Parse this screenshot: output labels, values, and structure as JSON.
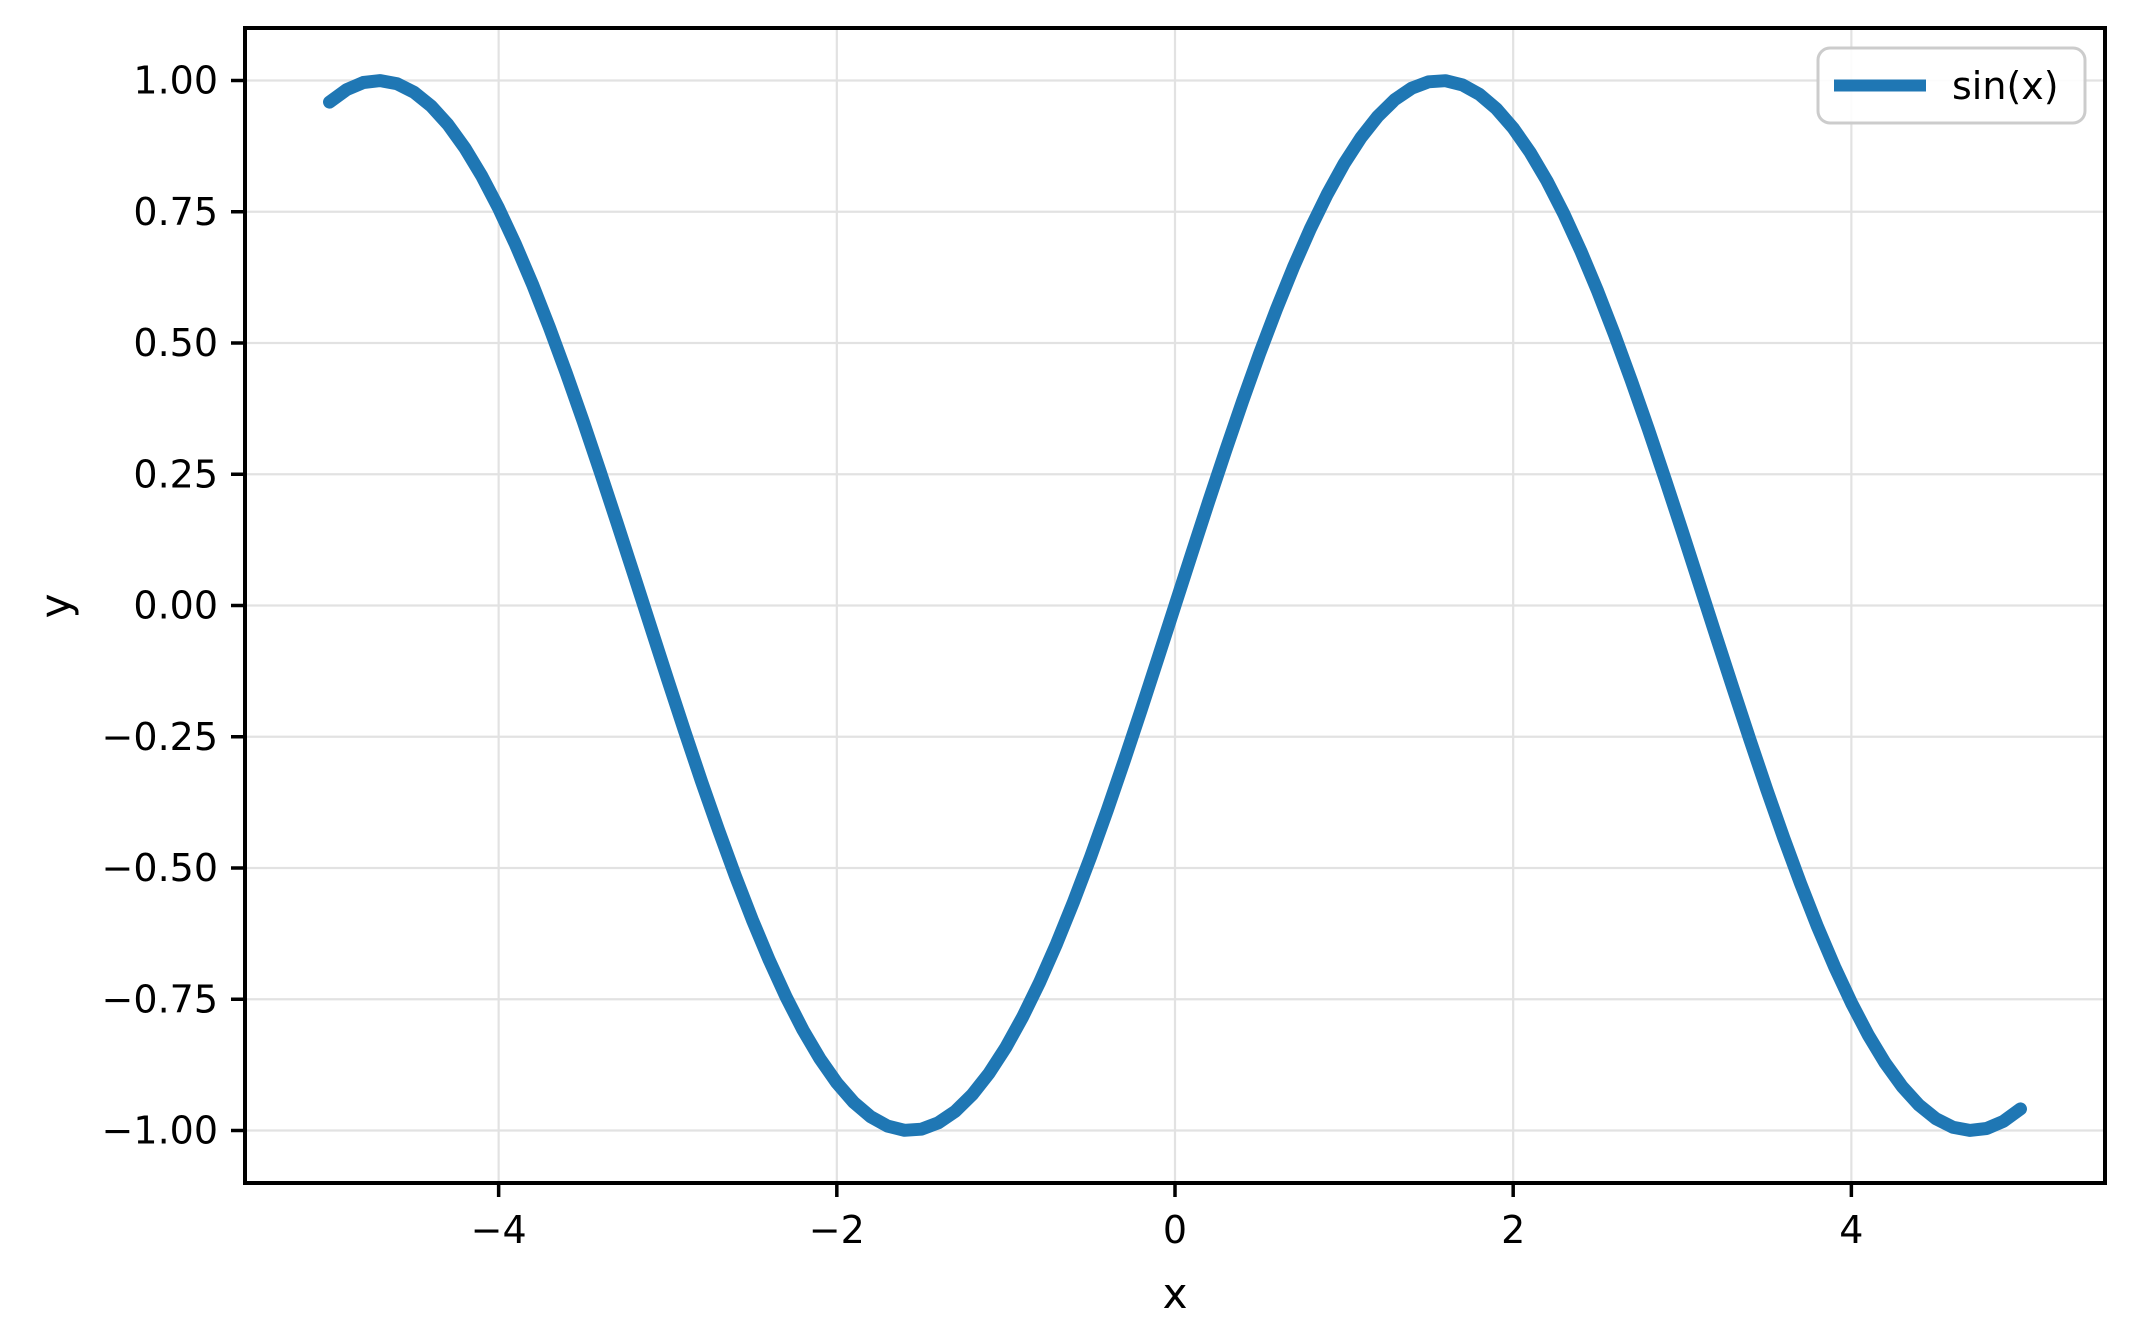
{
  "figure": {
    "background": "#ffffff"
  },
  "chart_data": {
    "type": "line",
    "title": "",
    "xlabel": "x",
    "ylabel": "y",
    "xlim": [
      -5.5,
      5.5
    ],
    "ylim": [
      -1.1,
      1.1
    ],
    "grid": true,
    "grid_color": "#e2e2e2",
    "axes_edge_color": "#000000",
    "x_ticks": [
      -4,
      -2,
      0,
      2,
      4
    ],
    "x_tick_labels": [
      "−4",
      "−2",
      "0",
      "2",
      "4"
    ],
    "y_ticks": [
      1.0,
      0.75,
      0.5,
      0.25,
      0.0,
      -0.25,
      -0.5,
      -0.75,
      -1.0
    ],
    "y_tick_labels": [
      "1.00",
      "0.75",
      "0.50",
      "0.25",
      "0.00",
      "−0.25",
      "−0.50",
      "−0.75",
      "−1.00"
    ],
    "legend": {
      "position": "upper right",
      "entries": [
        {
          "label": "sin(x)",
          "color": "#1f77b4"
        }
      ]
    },
    "series": [
      {
        "name": "sin(x)",
        "color": "#1f77b4",
        "x": [
          -5,
          -4.9,
          -4.8,
          -4.7,
          -4.6,
          -4.5,
          -4.4,
          -4.3,
          -4.2,
          -4.1,
          -4,
          -3.9,
          -3.8,
          -3.7,
          -3.6,
          -3.5,
          -3.4,
          -3.3,
          -3.2,
          -3.1,
          -3,
          -2.9,
          -2.8,
          -2.7,
          -2.6,
          -2.5,
          -2.4,
          -2.3,
          -2.2,
          -2.1,
          -2,
          -1.9,
          -1.8,
          -1.7,
          -1.6,
          -1.5,
          -1.4,
          -1.3,
          -1.2,
          -1.1,
          -1,
          -0.9,
          -0.8,
          -0.7,
          -0.6,
          -0.5,
          -0.4,
          -0.3,
          -0.2,
          -0.1,
          0,
          0.1,
          0.2,
          0.3,
          0.4,
          0.5,
          0.6,
          0.7,
          0.8,
          0.9,
          1,
          1.1,
          1.2,
          1.3,
          1.4,
          1.5,
          1.6,
          1.7,
          1.8,
          1.9,
          2,
          2.1,
          2.2,
          2.3,
          2.4,
          2.5,
          2.6,
          2.7,
          2.8,
          2.9,
          3,
          3.1,
          3.2,
          3.3,
          3.4,
          3.5,
          3.6,
          3.7,
          3.8,
          3.9,
          4,
          4.1,
          4.2,
          4.3,
          4.4,
          4.5,
          4.6,
          4.7,
          4.8,
          4.9,
          5
        ],
        "y": [
          0.9589,
          0.9825,
          0.9962,
          0.9999,
          0.9937,
          0.9775,
          0.9516,
          0.9162,
          0.8716,
          0.8183,
          0.7568,
          0.6878,
          0.6119,
          0.5298,
          0.4425,
          0.3508,
          0.2555,
          0.1577,
          0.0584,
          -0.0416,
          -0.1411,
          -0.2392,
          -0.335,
          -0.4274,
          -0.5155,
          -0.5985,
          -0.6755,
          -0.7457,
          -0.8085,
          -0.8632,
          -0.9093,
          -0.9463,
          -0.9738,
          -0.9917,
          -0.9996,
          -0.9975,
          -0.9854,
          -0.9636,
          -0.932,
          -0.8912,
          -0.8415,
          -0.7833,
          -0.7174,
          -0.6442,
          -0.5646,
          -0.4794,
          -0.3894,
          -0.2955,
          -0.1987,
          -0.0998,
          0,
          0.0998,
          0.1987,
          0.2955,
          0.3894,
          0.4794,
          0.5646,
          0.6442,
          0.7174,
          0.7833,
          0.8415,
          0.8912,
          0.932,
          0.9636,
          0.9854,
          0.9975,
          0.9996,
          0.9917,
          0.9738,
          0.9463,
          0.9093,
          0.8632,
          0.8085,
          0.7457,
          0.6755,
          0.5985,
          0.5155,
          0.4274,
          0.335,
          0.2392,
          0.1411,
          0.0416,
          -0.0584,
          -0.1577,
          -0.2555,
          -0.3508,
          -0.4425,
          -0.5298,
          -0.6119,
          -0.6878,
          -0.7568,
          -0.8183,
          -0.8716,
          -0.9162,
          -0.9516,
          -0.9775,
          -0.9937,
          -0.9999,
          -0.9962,
          -0.9825,
          -0.9589
        ]
      }
    ]
  }
}
